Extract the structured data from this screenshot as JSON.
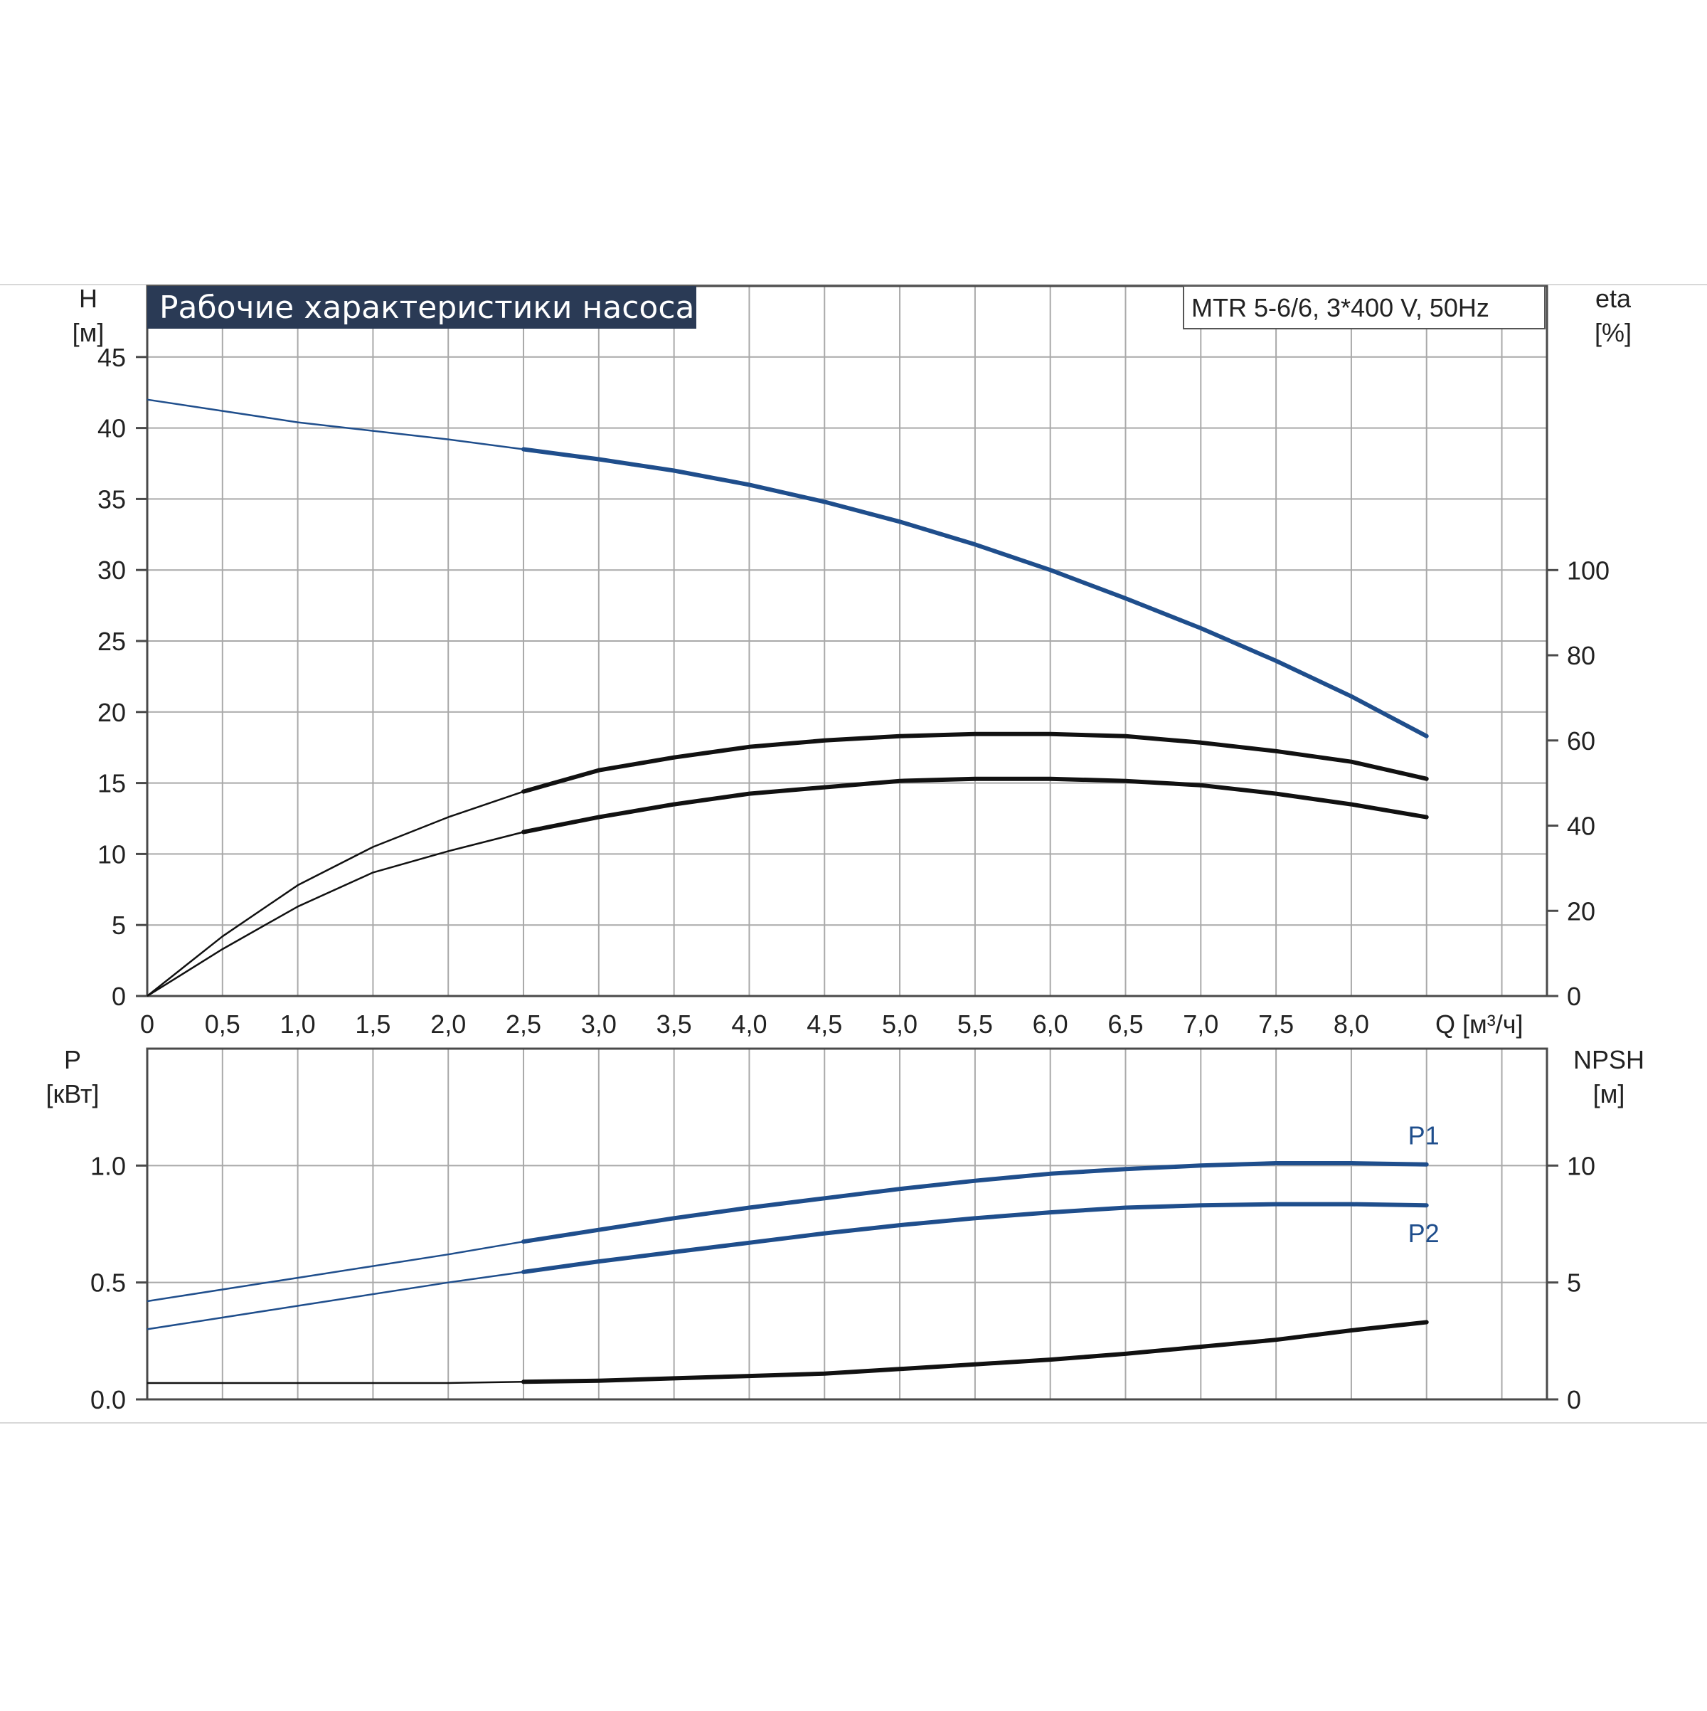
{
  "title": "Рабочие характеристики насоса",
  "model": "MTR 5-6/6, 3*400 V, 50Hz",
  "colors": {
    "blue": "#1f4e8c",
    "black": "#111111",
    "title_bg": "#2a3a55",
    "grid": "#a9a9a9"
  },
  "chart_data": [
    {
      "type": "line",
      "panel": "upper",
      "x_label": "Q [м³/ч]",
      "x_ticks": [
        "0",
        "0,5",
        "1,0",
        "1,5",
        "2,0",
        "2,5",
        "3,0",
        "3,5",
        "4,0",
        "4,5",
        "5,0",
        "5,5",
        "6,0",
        "6,5",
        "7,0",
        "7,5",
        "8,0"
      ],
      "xlim": [
        0,
        9.3
      ],
      "y_label": [
        "H",
        "[м]"
      ],
      "y_ticks": [
        "0",
        "5",
        "10",
        "15",
        "20",
        "25",
        "30",
        "35",
        "40",
        "45"
      ],
      "ylim": [
        0,
        50
      ],
      "y2_label": [
        "eta",
        "[%]"
      ],
      "y2_ticks": [
        "0",
        "20",
        "40",
        "60",
        "80",
        "100"
      ],
      "y2lim": [
        0,
        166.7
      ],
      "grid": true,
      "series": [
        {
          "axis": "y",
          "color": "#1f4e8c",
          "x": [
            0,
            0.5,
            1.0,
            1.5,
            2.0,
            2.5,
            3.0,
            3.5,
            4.0,
            4.5,
            5.0,
            5.5,
            6.0,
            6.5,
            7.0,
            7.5,
            8.0,
            8.5
          ],
          "y": [
            42.0,
            41.2,
            40.4,
            39.8,
            39.2,
            38.5,
            37.8,
            37.0,
            36.0,
            34.8,
            33.4,
            31.8,
            30.0,
            28.0,
            25.9,
            23.6,
            21.1,
            18.3
          ]
        },
        {
          "axis": "y2",
          "color": "#111111",
          "x": [
            0,
            0.5,
            1.0,
            1.5,
            2.0,
            2.5,
            3.0,
            3.5,
            4.0,
            4.5,
            5.0,
            5.5,
            6.0,
            6.5,
            7.0,
            7.5,
            8.0,
            8.5
          ],
          "y": [
            0,
            14,
            26,
            35,
            42,
            48,
            53,
            56,
            58.5,
            60,
            61,
            61.5,
            61.5,
            61,
            59.5,
            57.5,
            55,
            51
          ]
        },
        {
          "axis": "y2",
          "color": "#111111",
          "x": [
            0,
            0.5,
            1.0,
            1.5,
            2.0,
            2.5,
            3.0,
            3.5,
            4.0,
            4.5,
            5.0,
            5.5,
            6.0,
            6.5,
            7.0,
            7.5,
            8.0,
            8.5
          ],
          "y": [
            0,
            11,
            21,
            29,
            34,
            38.5,
            42,
            45,
            47.5,
            49,
            50.5,
            51,
            51,
            50.5,
            49.5,
            47.5,
            45,
            42
          ]
        }
      ]
    },
    {
      "type": "line",
      "panel": "lower",
      "xlim": [
        0,
        9.3
      ],
      "y_label": [
        "P",
        "[кВт]"
      ],
      "y_ticks": [
        "0.0",
        "0.5",
        "1.0"
      ],
      "ylim": [
        0,
        1.5
      ],
      "y2_label": [
        "NPSH",
        "[м]"
      ],
      "y2_ticks": [
        "0",
        "5",
        "10"
      ],
      "y2lim": [
        0,
        15
      ],
      "grid": true,
      "series": [
        {
          "name": "P1",
          "axis": "y",
          "color": "#1f4e8c",
          "x": [
            0,
            1.0,
            2.0,
            2.5,
            3.0,
            3.5,
            4.0,
            4.5,
            5.0,
            5.5,
            6.0,
            6.5,
            7.0,
            7.5,
            8.0,
            8.5
          ],
          "y": [
            0.42,
            0.52,
            0.62,
            0.675,
            0.725,
            0.775,
            0.82,
            0.86,
            0.9,
            0.935,
            0.965,
            0.985,
            1.0,
            1.01,
            1.01,
            1.005
          ]
        },
        {
          "name": "P2",
          "axis": "y",
          "color": "#1f4e8c",
          "x": [
            0,
            1.0,
            2.0,
            2.5,
            3.0,
            3.5,
            4.0,
            4.5,
            5.0,
            5.5,
            6.0,
            6.5,
            7.0,
            7.5,
            8.0,
            8.5
          ],
          "y": [
            0.3,
            0.4,
            0.5,
            0.545,
            0.59,
            0.63,
            0.67,
            0.71,
            0.745,
            0.775,
            0.8,
            0.82,
            0.83,
            0.835,
            0.835,
            0.83
          ]
        },
        {
          "axis": "y2",
          "color": "#111111",
          "x": [
            0,
            1.0,
            2.0,
            2.5,
            3.0,
            3.5,
            4.0,
            4.5,
            5.0,
            5.5,
            6.0,
            6.5,
            7.0,
            7.5,
            8.0,
            8.5
          ],
          "y": [
            0.7,
            0.7,
            0.7,
            0.75,
            0.8,
            0.9,
            1.0,
            1.1,
            1.3,
            1.5,
            1.7,
            1.95,
            2.25,
            2.55,
            2.95,
            3.3
          ]
        }
      ]
    }
  ]
}
